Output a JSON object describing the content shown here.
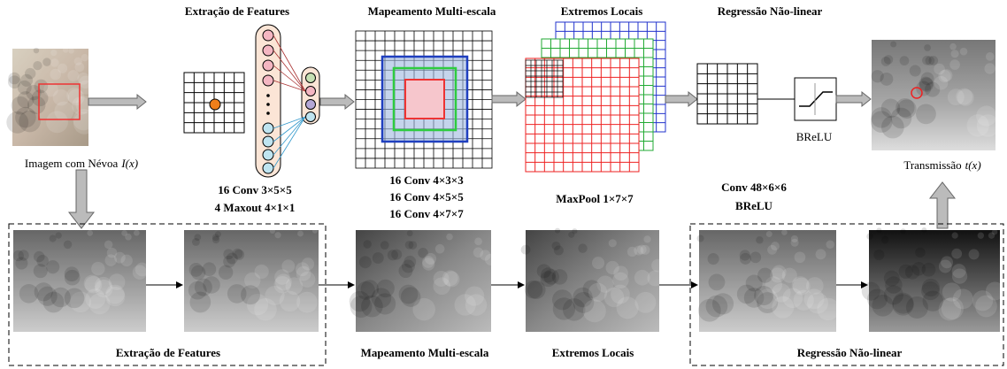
{
  "top_titles": [
    "Extração de Features",
    "Mapeamento Multi-escala",
    "Extremos Locais",
    "Regressão Não-linear"
  ],
  "input_label": {
    "text": "Imagem com Névoa",
    "var": "I(x)"
  },
  "output_label": {
    "text": "Transmissão",
    "var": "t(x)"
  },
  "activation_label": "BReLU",
  "params": {
    "feature": [
      "16 Conv 3×5×5",
      "4 Maxout 4×1×1"
    ],
    "multiscale": [
      "16 Conv 4×3×3",
      "16 Conv 4×5×5",
      "16 Conv 4×7×7"
    ],
    "extremum": [
      "MaxPool 1×7×7"
    ],
    "regression": [
      "Conv 48×6×6",
      "BReLU"
    ]
  },
  "bottom_labels": [
    "Extração de Features",
    "Mapeamento Multi-escala",
    "Extremos Locais",
    "Regressão Não-linear"
  ]
}
